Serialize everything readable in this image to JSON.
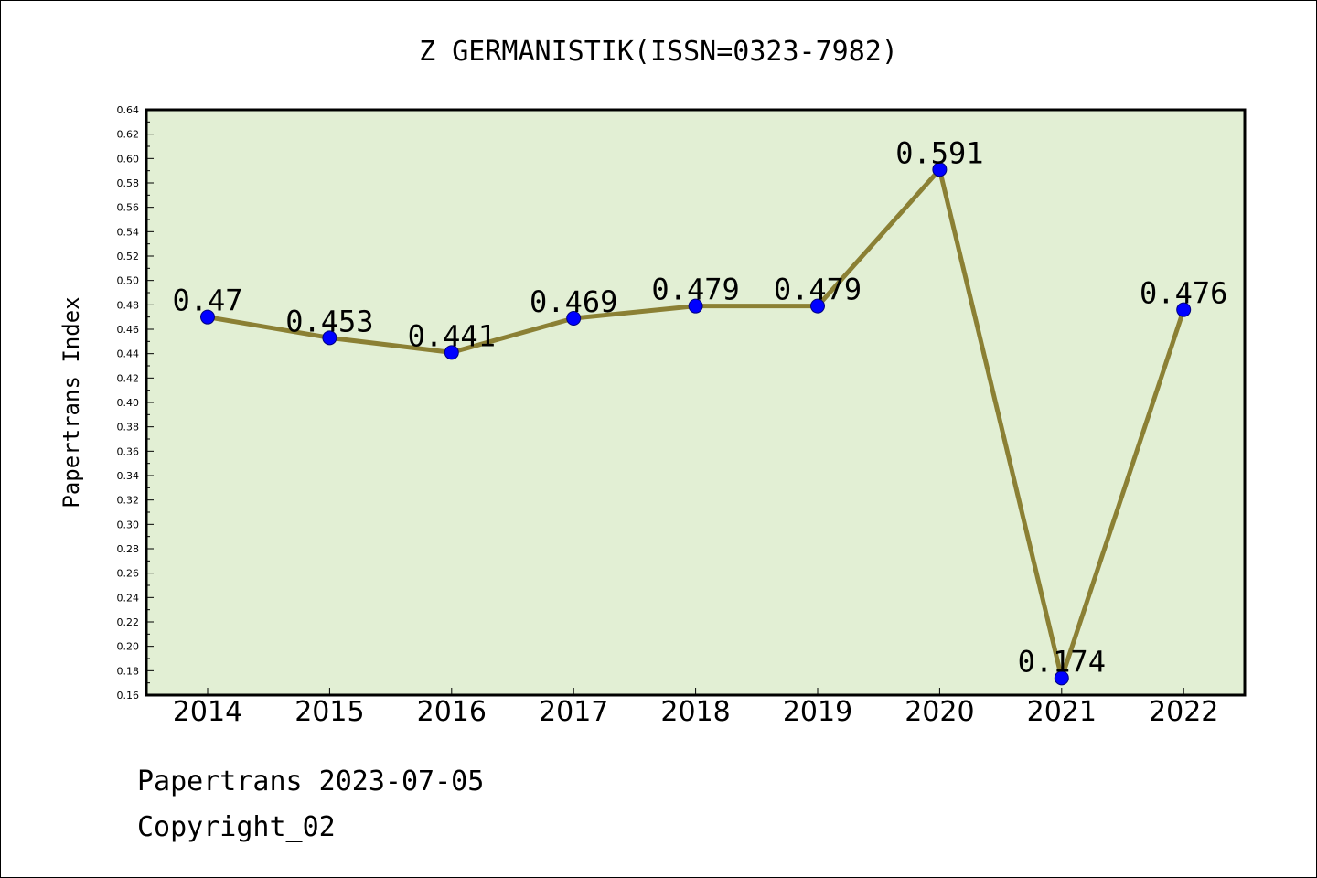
{
  "chart_data": {
    "type": "line",
    "title": "Z GERMANISTIK(ISSN=0323-7982)",
    "xlabel": "",
    "ylabel": "Papertrans Index",
    "categories": [
      "2014",
      "2015",
      "2016",
      "2017",
      "2018",
      "2019",
      "2020",
      "2021",
      "2022"
    ],
    "series": [
      {
        "values": [
          0.47,
          0.453,
          0.441,
          0.469,
          0.479,
          0.479,
          0.591,
          0.174,
          0.476
        ],
        "labels": [
          "0.47",
          "0.453",
          "0.441",
          "0.469",
          "0.479",
          "0.479",
          "0.591",
          "0.174",
          "0.476"
        ]
      }
    ],
    "ylim": [
      0.16,
      0.64
    ],
    "ytick_step": 0.02,
    "grid": false,
    "legend": "none",
    "colors": {
      "plot_background": "#e2efd4",
      "line": "#8b8034",
      "marker": "#0000ff",
      "axis": "#000000"
    }
  },
  "footer": {
    "line1": "Papertrans 2023-07-05",
    "line2": "Copyright_02"
  }
}
